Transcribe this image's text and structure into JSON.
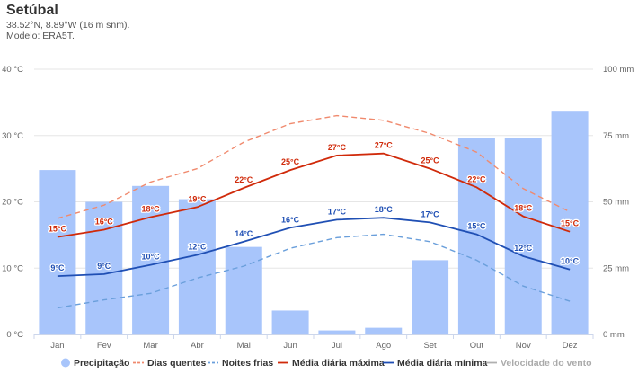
{
  "header": {
    "title": "Setúbal",
    "coords": "38.52°N, 8.89°W (16 m snm).",
    "model": "Modelo: ERA5T."
  },
  "chart_data": {
    "type": "bar+line",
    "categories": [
      "Jan",
      "Fev",
      "Mar",
      "Abr",
      "Mai",
      "Jun",
      "Jul",
      "Ago",
      "Set",
      "Out",
      "Nov",
      "Dez"
    ],
    "y_left": {
      "unit": "°C",
      "ticks": [
        "0 °C",
        "10 °C",
        "20 °C",
        "30 °C",
        "40 °C"
      ],
      "range": [
        0,
        40
      ]
    },
    "y_right": {
      "unit": "mm",
      "ticks": [
        "0 mm",
        "25 mm",
        "50 mm",
        "75 mm",
        "100 mm"
      ],
      "range": [
        0,
        100
      ]
    },
    "precipitation": {
      "name": "Precipitação",
      "color": "#a8c5fb",
      "values": [
        62,
        50,
        56,
        51,
        33,
        9,
        1.5,
        2.5,
        28,
        74,
        74,
        84
      ]
    },
    "hot_days": {
      "name": "Dias quentes",
      "color": "#f08a6e",
      "values": [
        17.5,
        19.5,
        23,
        25,
        29,
        31.8,
        33,
        32.3,
        30.3,
        27.5,
        22,
        18.5
      ]
    },
    "cold_nights": {
      "name": "Noites frias",
      "color": "#6a9fdb",
      "values": [
        4,
        5.2,
        6.2,
        8.5,
        10.3,
        13,
        14.6,
        15.1,
        14,
        11.2,
        7.3,
        5
      ]
    },
    "max_mean": {
      "name": "Média diária máxima",
      "color": "#d02a0a",
      "values": [
        14.7,
        15.8,
        17.7,
        19.2,
        22.1,
        24.8,
        27,
        27.3,
        25,
        22.2,
        17.8,
        15.5
      ],
      "labels": [
        "15°C",
        "16°C",
        "18°C",
        "19°C",
        "22°C",
        "25°C",
        "27°C",
        "27°C",
        "25°C",
        "22°C",
        "18°C",
        "15°C"
      ]
    },
    "min_mean": {
      "name": "Média diária mínima",
      "color": "#1f4fb4",
      "values": [
        8.8,
        9.1,
        10.5,
        12,
        14,
        16.1,
        17.3,
        17.6,
        16.9,
        15.1,
        11.8,
        9.8
      ],
      "labels": [
        "9°C",
        "9°C",
        "10°C",
        "12°C",
        "14°C",
        "16°C",
        "17°C",
        "18°C",
        "17°C",
        "15°C",
        "12°C",
        "10°C"
      ]
    },
    "wind": {
      "name": "Velocidade do vento",
      "color": "#b0b0b0",
      "visible": false
    },
    "legend_position": "bottom",
    "grid": true
  }
}
